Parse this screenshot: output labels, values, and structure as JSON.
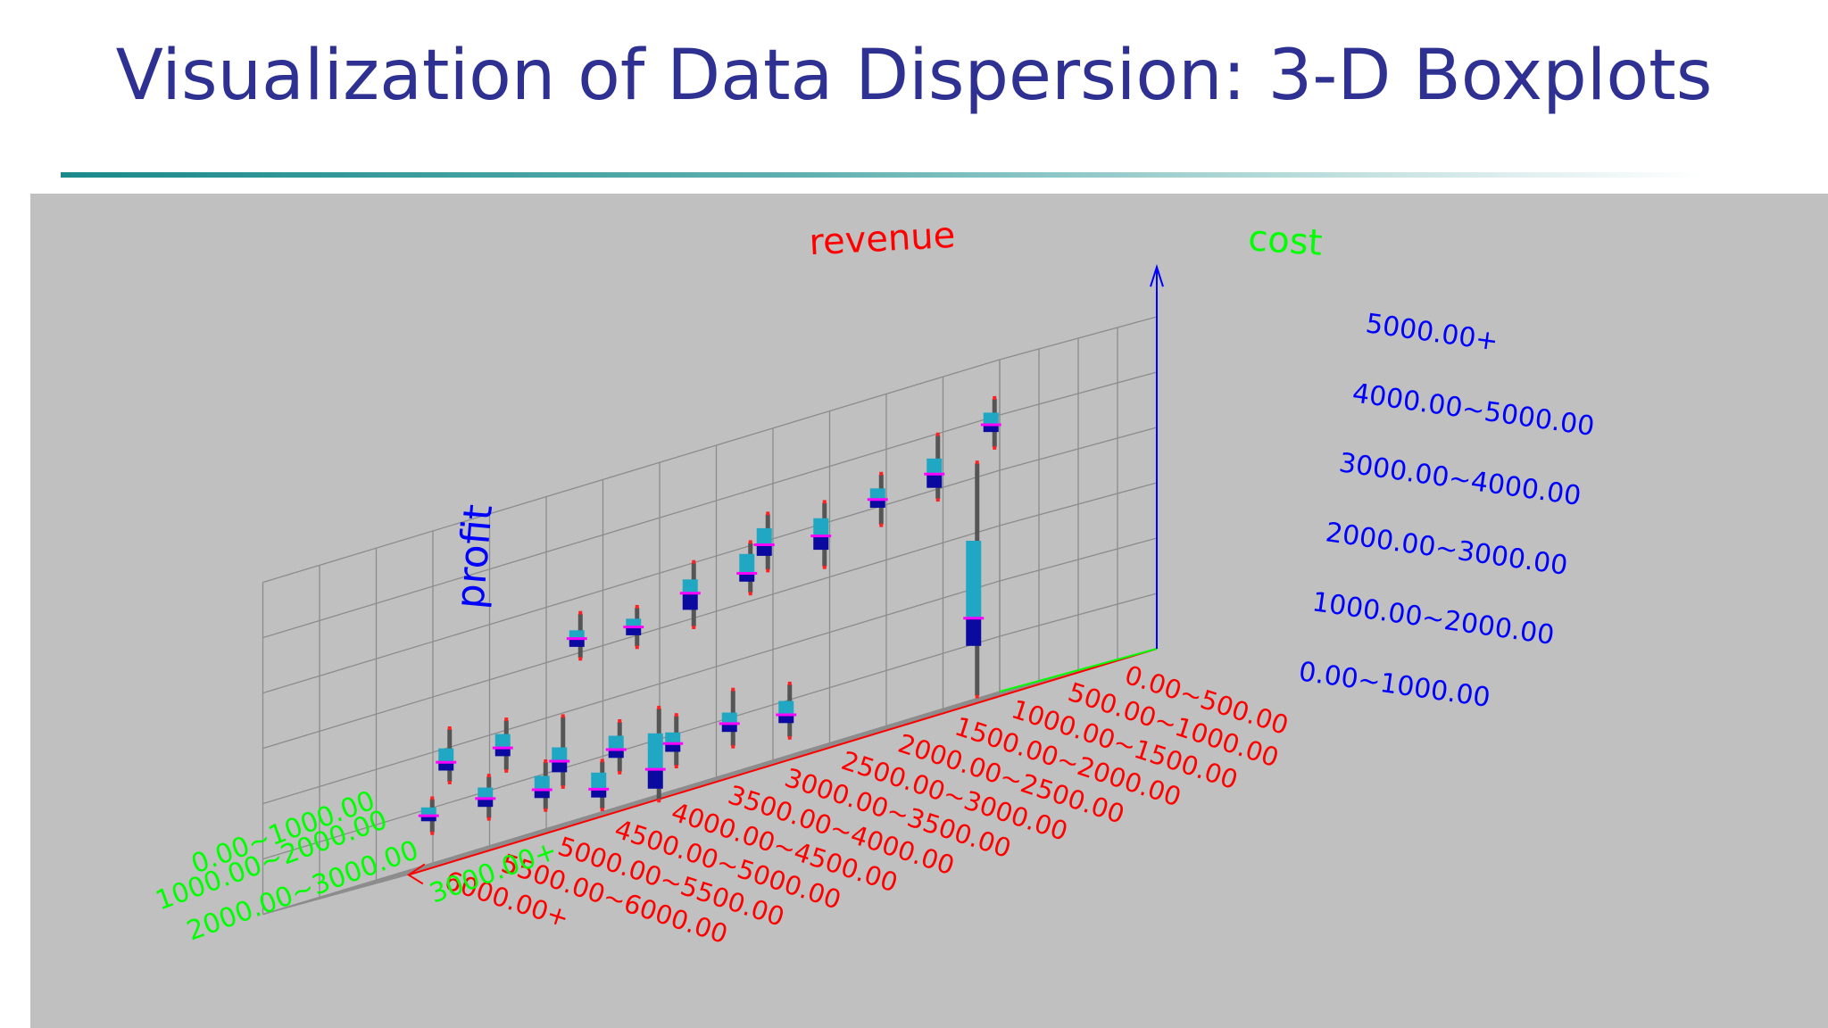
{
  "slide": {
    "title": "Visualization of Data Dispersion: 3-D Boxplots"
  },
  "chart_data": {
    "type": "boxplot-3d",
    "axes": {
      "revenue": {
        "label": "revenue",
        "color": "#ff0000",
        "ticks": [
          "0.00~500.00",
          "500.00~1000.00",
          "1000.00~1500.00",
          "1500.00~2000.00",
          "2000.00~2500.00",
          "2500.00~3000.00",
          "3000.00~3500.00",
          "3500.00~4000.00",
          "4000.00~4500.00",
          "4500.00~5000.00",
          "5000.00~5500.00",
          "5500.00~6000.00",
          "6000.00+"
        ]
      },
      "cost": {
        "label": "cost",
        "color": "#00ff00",
        "ticks": [
          "0.00~1000.00",
          "1000.00~2000.00",
          "2000.00~3000.00",
          "3000.00+"
        ]
      },
      "profit": {
        "label": "profit",
        "color": "#0000ff",
        "ticks": [
          "0.00~1000.00",
          "1000.00~2000.00",
          "2000.00~3000.00",
          "3000.00~4000.00",
          "4000.00~5000.00",
          "5000.00+"
        ]
      }
    },
    "box_colors": {
      "upper_box": "#1fa7c4",
      "lower_box": "#0a0aa0",
      "whisker": "#555555",
      "median": "#ff00ff",
      "extreme": "#ff2020"
    },
    "boxes": [
      {
        "revenue": 0.5,
        "cost": 3.5,
        "min": 4.48,
        "q1": 4.75,
        "median": 4.88,
        "q3": 5.1,
        "max": 5.35
      },
      {
        "revenue": 1.5,
        "cost": 3.5,
        "min": 3.85,
        "q1": 4.05,
        "median": 4.3,
        "q3": 4.58,
        "max": 5.0
      },
      {
        "revenue": 2.5,
        "cost": 3.5,
        "min": 3.7,
        "q1": 4.0,
        "median": 4.15,
        "q3": 4.35,
        "max": 4.6
      },
      {
        "revenue": 3.5,
        "cost": 3.5,
        "min": 3.25,
        "q1": 3.55,
        "median": 3.8,
        "q3": 4.12,
        "max": 4.4
      },
      {
        "revenue": 4.5,
        "cost": 3.5,
        "min": 3.5,
        "q1": 3.75,
        "median": 3.95,
        "q3": 4.25,
        "max": 4.5
      },
      {
        "revenue": 1.5,
        "cost": 2.5,
        "min": 0.1,
        "q1": 1.0,
        "median": 1.5,
        "q3": 2.9,
        "max": 4.3
      },
      {
        "revenue": 5.5,
        "cost": 2.5,
        "min": 3.2,
        "q1": 3.4,
        "median": 3.55,
        "q3": 3.9,
        "max": 4.1
      },
      {
        "revenue": 6.5,
        "cost": 2.5,
        "min": 2.9,
        "q1": 3.2,
        "median": 3.5,
        "q3": 3.75,
        "max": 4.05
      },
      {
        "revenue": 7.5,
        "cost": 2.5,
        "min": 2.85,
        "q1": 3.05,
        "median": 3.2,
        "q3": 3.35,
        "max": 3.55
      },
      {
        "revenue": 8.5,
        "cost": 2.5,
        "min": 2.95,
        "q1": 3.15,
        "median": 3.3,
        "q3": 3.45,
        "max": 3.75
      },
      {
        "revenue": 5.5,
        "cost": 1.5,
        "min": 0.4,
        "q1": 0.65,
        "median": 0.8,
        "q3": 1.05,
        "max": 1.35
      },
      {
        "revenue": 6.5,
        "cost": 1.5,
        "min": 0.55,
        "q1": 0.8,
        "median": 0.95,
        "q3": 1.15,
        "max": 1.55
      },
      {
        "revenue": 7.5,
        "cost": 1.5,
        "min": 0.5,
        "q1": 0.75,
        "median": 0.9,
        "q3": 1.1,
        "max": 1.4
      },
      {
        "revenue": 8.5,
        "cost": 1.5,
        "min": 0.7,
        "q1": 0.95,
        "median": 1.1,
        "q3": 1.35,
        "max": 1.6
      },
      {
        "revenue": 9.5,
        "cost": 1.5,
        "min": 0.75,
        "q1": 1.0,
        "median": 1.2,
        "q3": 1.45,
        "max": 2.0
      },
      {
        "revenue": 10.5,
        "cost": 1.5,
        "min": 1.35,
        "q1": 1.6,
        "median": 1.75,
        "q3": 2.0,
        "max": 2.25
      },
      {
        "revenue": 11.5,
        "cost": 1.5,
        "min": 1.45,
        "q1": 1.65,
        "median": 1.8,
        "q3": 2.05,
        "max": 2.4
      },
      {
        "revenue": 8.5,
        "cost": 0.5,
        "min": 0.0,
        "q1": 0.2,
        "median": 0.55,
        "q3": 1.2,
        "max": 1.65
      },
      {
        "revenue": 9.5,
        "cost": 0.5,
        "min": 0.15,
        "q1": 0.35,
        "median": 0.5,
        "q3": 0.8,
        "max": 1.0
      },
      {
        "revenue": 10.5,
        "cost": 0.5,
        "min": 0.45,
        "q1": 0.65,
        "median": 0.8,
        "q3": 1.05,
        "max": 1.3
      },
      {
        "revenue": 11.5,
        "cost": 0.5,
        "min": 0.6,
        "q1": 0.8,
        "median": 0.95,
        "q3": 1.15,
        "max": 1.35
      },
      {
        "revenue": 12.5,
        "cost": 0.5,
        "min": 0.65,
        "q1": 0.85,
        "median": 0.95,
        "q3": 1.1,
        "max": 1.25
      }
    ]
  }
}
